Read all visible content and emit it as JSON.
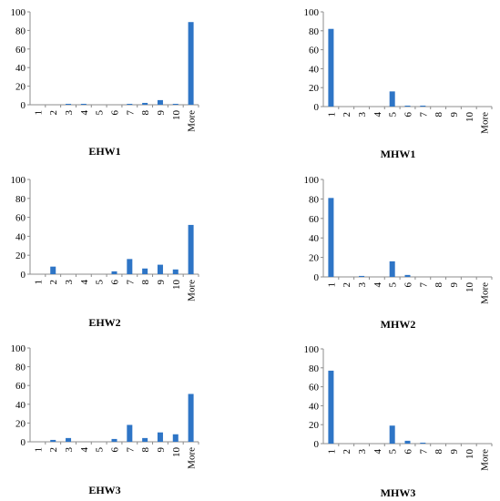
{
  "colors": {
    "bar": "#2e75c6",
    "axis": "#8c8c8c"
  },
  "chart_data": [
    {
      "type": "bar",
      "title": "EHW1",
      "categories": [
        "1",
        "2",
        "3",
        "4",
        "5",
        "6",
        "7",
        "8",
        "9",
        "10",
        "More"
      ],
      "values": [
        0,
        0,
        1,
        1,
        0,
        0,
        1,
        2,
        5,
        1,
        89
      ],
      "ylim": [
        0,
        100
      ],
      "yticks": [
        "0",
        "20",
        "40",
        "60",
        "80",
        "100"
      ],
      "xlabel": "",
      "ylabel": "",
      "grid": false
    },
    {
      "type": "bar",
      "title": "MHW1",
      "categories": [
        "1",
        "2",
        "3",
        "4",
        "5",
        "6",
        "7",
        "8",
        "9",
        "10",
        "More"
      ],
      "values": [
        82,
        0,
        0,
        0,
        16,
        1,
        1,
        0,
        0,
        0,
        0
      ],
      "ylim": [
        0,
        100
      ],
      "yticks": [
        "0",
        "20",
        "40",
        "60",
        "80",
        "100"
      ],
      "xlabel": "",
      "ylabel": "",
      "grid": false
    },
    {
      "type": "bar",
      "title": "EHW2",
      "categories": [
        "1",
        "2",
        "3",
        "4",
        "5",
        "6",
        "7",
        "8",
        "9",
        "10",
        "More"
      ],
      "values": [
        0,
        8,
        0,
        0,
        0,
        3,
        16,
        6,
        10,
        5,
        52
      ],
      "ylim": [
        0,
        100
      ],
      "yticks": [
        "0",
        "20",
        "40",
        "60",
        "80",
        "100"
      ],
      "xlabel": "",
      "ylabel": "",
      "grid": false
    },
    {
      "type": "bar",
      "title": "MHW2",
      "categories": [
        "1",
        "2",
        "3",
        "4",
        "5",
        "6",
        "7",
        "8",
        "9",
        "10",
        "More"
      ],
      "values": [
        81,
        0,
        1,
        0,
        16,
        2,
        0,
        0,
        0,
        0,
        0
      ],
      "ylim": [
        0,
        100
      ],
      "yticks": [
        "0",
        "20",
        "40",
        "60",
        "80",
        "100"
      ],
      "xlabel": "",
      "ylabel": "",
      "grid": false
    },
    {
      "type": "bar",
      "title": "EHW3",
      "categories": [
        "1",
        "2",
        "3",
        "4",
        "5",
        "6",
        "7",
        "8",
        "9",
        "10",
        "More"
      ],
      "values": [
        0,
        2,
        4,
        0,
        0,
        3,
        18,
        4,
        10,
        8,
        51
      ],
      "ylim": [
        0,
        100
      ],
      "yticks": [
        "0",
        "20",
        "40",
        "60",
        "80",
        "100"
      ],
      "xlabel": "",
      "ylabel": "",
      "grid": false
    },
    {
      "type": "bar",
      "title": "MHW3",
      "categories": [
        "1",
        "2",
        "3",
        "4",
        "5",
        "6",
        "7",
        "8",
        "9",
        "10",
        "More"
      ],
      "values": [
        77,
        0,
        0,
        0,
        19,
        3,
        1,
        0,
        0,
        0,
        0
      ],
      "ylim": [
        0,
        100
      ],
      "yticks": [
        "0",
        "20",
        "40",
        "60",
        "80",
        "100"
      ],
      "xlabel": "",
      "ylabel": "",
      "grid": false
    }
  ]
}
